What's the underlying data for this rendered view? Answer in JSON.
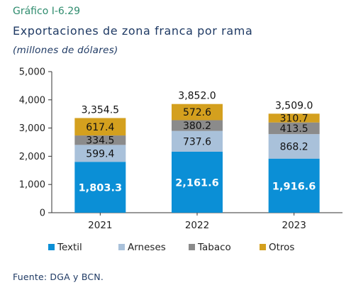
{
  "figure_label": "Gráfico I-6.29",
  "title": "Exportaciones de zona franca por rama",
  "units": "(millones de dólares)",
  "source": "Fuente: DGA y BCN.",
  "colors": {
    "Textil": "#0b8fd6",
    "Arneses": "#a9c1da",
    "Tabaco": "#8b8b8b",
    "Otros": "#d4a01e",
    "axis": "#333333",
    "gridline": "#cccccc"
  },
  "chart_data": {
    "type": "bar",
    "stacked": true,
    "categories": [
      "2021",
      "2022",
      "2023"
    ],
    "series": [
      {
        "name": "Textil",
        "values": [
          1803.3,
          2161.6,
          1916.6
        ],
        "labels": [
          "1,803.3",
          "2,161.6",
          "1,916.6"
        ]
      },
      {
        "name": "Arneses",
        "values": [
          599.4,
          737.6,
          868.2
        ],
        "labels": [
          "599.4",
          "737.6",
          "868.2"
        ]
      },
      {
        "name": "Tabaco",
        "values": [
          334.5,
          380.2,
          413.5
        ],
        "labels": [
          "334.5",
          "380.2",
          "413.5"
        ]
      },
      {
        "name": "Otros",
        "values": [
          617.4,
          572.6,
          310.7
        ],
        "labels": [
          "617.4",
          "572.6",
          "310.7"
        ]
      }
    ],
    "totals": [
      3354.5,
      3852.0,
      3509.0
    ],
    "total_labels": [
      "3,354.5",
      "3,852.0",
      "3,509.0"
    ],
    "ylim": [
      0,
      5000
    ],
    "yticks": [
      0,
      1000,
      2000,
      3000,
      4000,
      5000
    ],
    "ytick_labels": [
      "0",
      "1,000",
      "2,000",
      "3,000",
      "4,000",
      "5,000"
    ],
    "xlabel": "",
    "ylabel": "",
    "grid": false,
    "legend_position": "bottom"
  }
}
